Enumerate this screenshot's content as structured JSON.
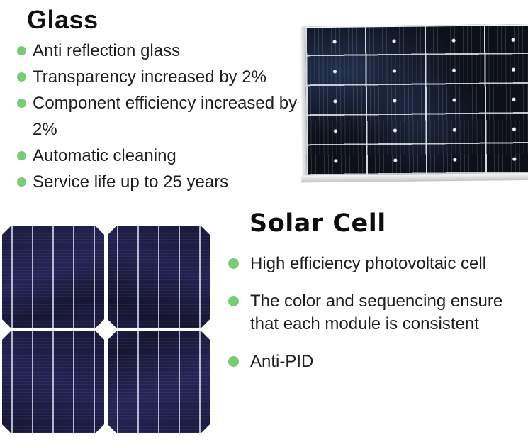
{
  "colors": {
    "background": "#ffffff",
    "bullet_green": "#77cc74",
    "heading_text": "#111111",
    "body_text": "#1e1e1e",
    "panel_frame_silver": "#d9d9d9",
    "panel_cell_dark": "#0e1018",
    "cells_navy": "#1b1a3e"
  },
  "glass_section": {
    "title": "Glass",
    "items": [
      "Anti reflection glass",
      "Transparency increased by 2%",
      "Component efficiency increased by 2%",
      "Automatic cleaning",
      "Service life up to 25 years"
    ]
  },
  "solar_cell_section": {
    "title": "Solar Cell",
    "items": [
      "High efficiency photovoltaic cell",
      "The color and sequencing ensure that each module is consistent",
      "Anti-PID"
    ]
  }
}
